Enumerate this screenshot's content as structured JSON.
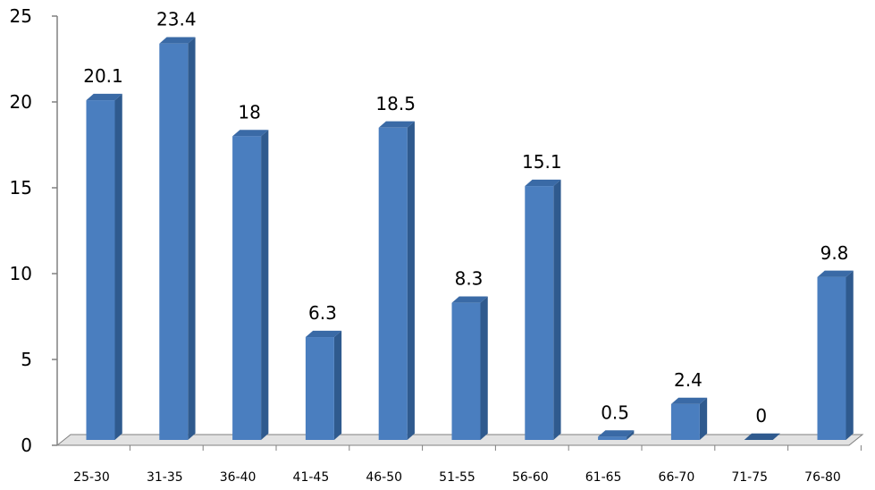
{
  "chart_data": {
    "type": "bar",
    "style": "3d-column",
    "categories": [
      "25-30",
      "31-35",
      "36-40",
      "41-45",
      "46-50",
      "51-55",
      "56-60",
      "61-65",
      "66-70",
      "71-75",
      "76-80"
    ],
    "values": [
      20.1,
      23.4,
      18,
      6.3,
      18.5,
      8.3,
      15.1,
      0.5,
      2.4,
      0,
      9.8
    ],
    "data_labels": [
      "20.1",
      "23.4",
      "18",
      "6.3",
      "18.5",
      "8.3",
      "15.1",
      "0.5",
      "2.4",
      "0",
      "9.8"
    ],
    "yticks": [
      "0",
      "5",
      "10",
      "15",
      "20",
      "25"
    ],
    "ylim": [
      0,
      25
    ],
    "title": "",
    "xlabel": "",
    "ylabel": "",
    "grid": false,
    "legend": "none",
    "colors": {
      "bar_front": "#4a7ebf",
      "bar_side": "#2f5a8e",
      "bar_top": "#3a6aa6",
      "axis": "#808080",
      "floor": "#e2e2e2"
    }
  }
}
